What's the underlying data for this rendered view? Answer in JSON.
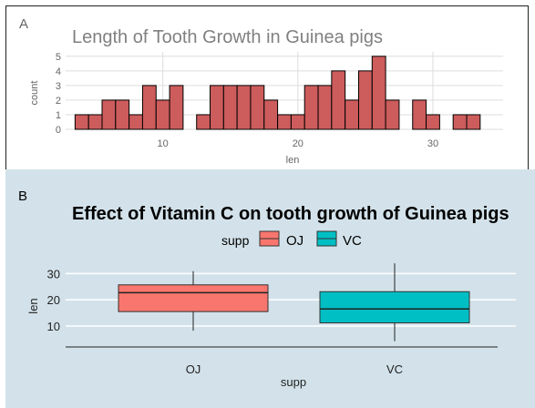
{
  "chart_data": [
    {
      "type": "bar",
      "panel_label": "A",
      "title": "Length of Tooth Growth in Guinea pigs",
      "xlabel": "len",
      "ylabel": "count",
      "xlim": [
        2.8,
        35.2
      ],
      "ylim": [
        0,
        5.3
      ],
      "xticks": [
        10,
        20,
        30
      ],
      "yticks": [
        0,
        1,
        2,
        3,
        4,
        5
      ],
      "bin_width": 1,
      "bins": [
        {
          "x": 4,
          "count": 1
        },
        {
          "x": 5,
          "count": 1
        },
        {
          "x": 6,
          "count": 2
        },
        {
          "x": 7,
          "count": 2
        },
        {
          "x": 8,
          "count": 1
        },
        {
          "x": 9,
          "count": 3
        },
        {
          "x": 10,
          "count": 2
        },
        {
          "x": 11,
          "count": 3
        },
        {
          "x": 12,
          "count": 0
        },
        {
          "x": 13,
          "count": 1
        },
        {
          "x": 14,
          "count": 3
        },
        {
          "x": 15,
          "count": 3
        },
        {
          "x": 16,
          "count": 3
        },
        {
          "x": 17,
          "count": 3
        },
        {
          "x": 18,
          "count": 2
        },
        {
          "x": 19,
          "count": 1
        },
        {
          "x": 20,
          "count": 1
        },
        {
          "x": 21,
          "count": 3
        },
        {
          "x": 22,
          "count": 3
        },
        {
          "x": 23,
          "count": 4
        },
        {
          "x": 24,
          "count": 2
        },
        {
          "x": 25,
          "count": 4
        },
        {
          "x": 26,
          "count": 5
        },
        {
          "x": 27,
          "count": 2
        },
        {
          "x": 28,
          "count": 0
        },
        {
          "x": 29,
          "count": 2
        },
        {
          "x": 30,
          "count": 1
        },
        {
          "x": 31,
          "count": 0
        },
        {
          "x": 32,
          "count": 1
        },
        {
          "x": 33,
          "count": 1
        }
      ],
      "colors": {
        "bar_fill": "#cd5c5c",
        "bar_stroke": "#000000",
        "title": "#808080",
        "axis_text": "#666666"
      },
      "grid": true
    },
    {
      "type": "boxplot",
      "panel_label": "B",
      "title": "Effect of Vitamin C on tooth growth of Guinea pigs",
      "xlabel": "supp",
      "ylabel": "len",
      "ylim": [
        2,
        35
      ],
      "yticks": [
        10,
        20,
        30
      ],
      "legend_title": "supp",
      "legend_position": "top",
      "categories": [
        "OJ",
        "VC"
      ],
      "boxes": [
        {
          "name": "OJ",
          "min": 8.2,
          "q1": 15.5,
          "median": 22.7,
          "q3": 25.7,
          "max": 30.9,
          "color": "#f8766d"
        },
        {
          "name": "VC",
          "min": 4.2,
          "q1": 11.2,
          "median": 16.5,
          "q3": 23.1,
          "max": 33.9,
          "color": "#00bfc4"
        }
      ],
      "colors": {
        "background": "#d3e2ea",
        "gridline": "#ffffff"
      },
      "grid": true
    }
  ]
}
